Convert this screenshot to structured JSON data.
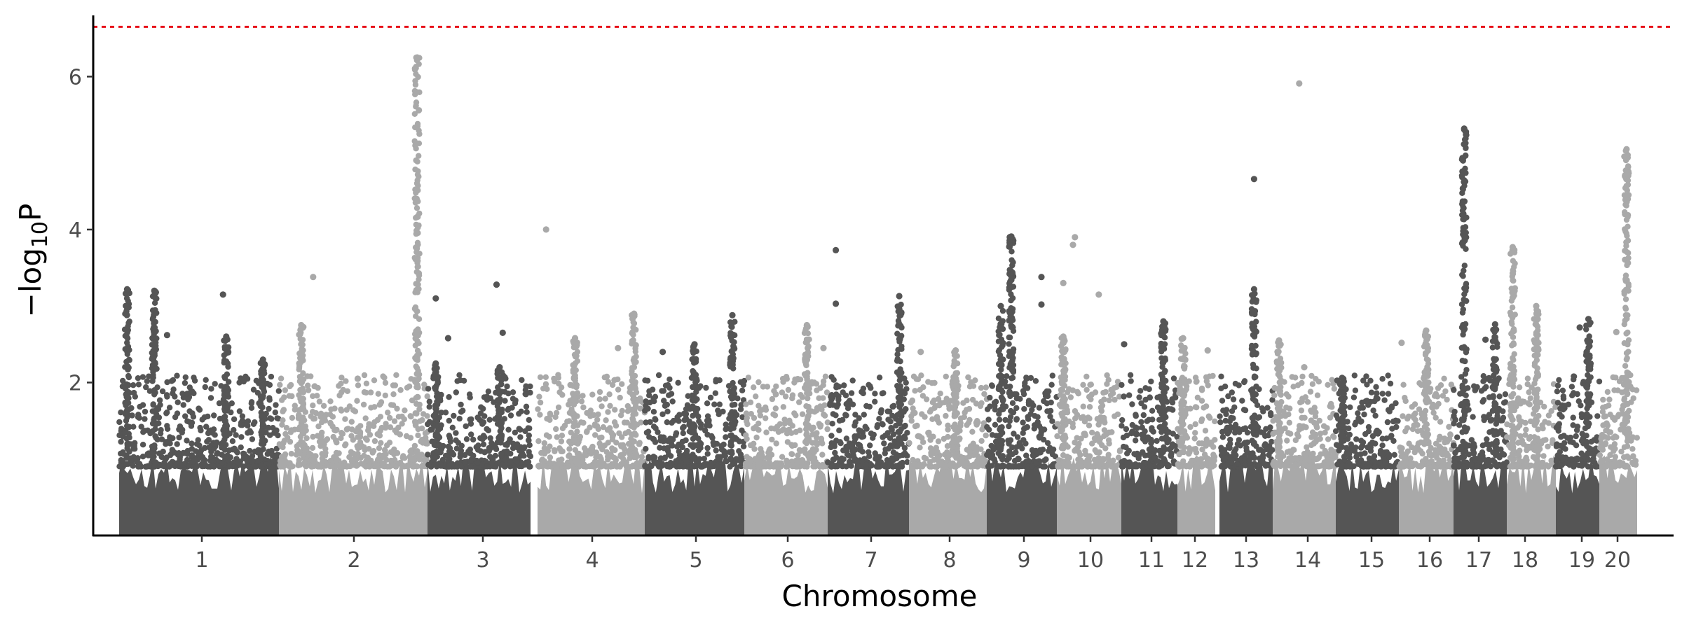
{
  "chart_data": {
    "type": "scatter",
    "subtype": "manhattan",
    "title": "",
    "xlabel": "Chromosome",
    "ylabel_main": "−log",
    "ylabel_sub": "10",
    "ylabel_tail": "P",
    "ylim": [
      0,
      6.8
    ],
    "yticks": [
      2,
      4,
      6
    ],
    "grid": false,
    "legend": "none",
    "threshold": {
      "value": 6.65,
      "color": "#e8101a",
      "style": "dashed"
    },
    "colors": {
      "dark": "#555555",
      "light": "#a9a9a9",
      "axis": "#000000"
    },
    "chromosomes": [
      {
        "name": "1",
        "color": "dark",
        "peaks": [
          {
            "at": 0.05,
            "value": 3.22
          },
          {
            "at": 0.22,
            "value": 3.2
          },
          {
            "at": 0.67,
            "value": 2.6
          },
          {
            "at": 0.9,
            "value": 2.3
          }
        ],
        "outliers": [
          {
            "at": 0.3,
            "value": 2.62
          },
          {
            "at": 0.65,
            "value": 3.15
          }
        ]
      },
      {
        "name": "2",
        "color": "light",
        "peaks": [
          {
            "at": 0.15,
            "value": 2.75
          },
          {
            "at": 0.93,
            "value": 6.25
          }
        ],
        "outliers": [
          {
            "at": 0.23,
            "value": 3.38
          },
          {
            "at": 0.53,
            "value": 2.05
          }
        ]
      },
      {
        "name": "3",
        "color": "dark",
        "peaks": [
          {
            "at": 0.08,
            "value": 2.25
          },
          {
            "at": 0.7,
            "value": 2.2
          }
        ],
        "outliers": [
          {
            "at": 0.08,
            "value": 3.1
          },
          {
            "at": 0.2,
            "value": 2.58
          },
          {
            "at": 0.67,
            "value": 3.28
          },
          {
            "at": 0.73,
            "value": 2.65
          }
        ]
      },
      {
        "name": "4",
        "color": "light",
        "peaks": [
          {
            "at": 0.35,
            "value": 2.58
          },
          {
            "at": 0.9,
            "value": 2.9
          }
        ],
        "outliers": [
          {
            "at": 0.08,
            "value": 4.0
          },
          {
            "at": 0.75,
            "value": 2.45
          }
        ]
      },
      {
        "name": "5",
        "color": "dark",
        "peaks": [
          {
            "at": 0.5,
            "value": 2.5
          },
          {
            "at": 0.88,
            "value": 2.88
          }
        ],
        "outliers": [
          {
            "at": 0.18,
            "value": 2.4
          }
        ]
      },
      {
        "name": "6",
        "color": "light",
        "peaks": [
          {
            "at": 0.75,
            "value": 2.75
          }
        ],
        "outliers": [
          {
            "at": 0.95,
            "value": 2.45
          }
        ]
      },
      {
        "name": "7",
        "color": "dark",
        "peaks": [
          {
            "at": 0.88,
            "value": 3.13
          }
        ],
        "outliers": [
          {
            "at": 0.1,
            "value": 3.73
          },
          {
            "at": 0.1,
            "value": 3.03
          }
        ]
      },
      {
        "name": "8",
        "color": "light",
        "peaks": [
          {
            "at": 0.6,
            "value": 2.42
          }
        ],
        "outliers": [
          {
            "at": 0.15,
            "value": 2.4
          }
        ]
      },
      {
        "name": "9",
        "color": "dark",
        "peaks": [
          {
            "at": 0.35,
            "value": 3.91
          },
          {
            "at": 0.2,
            "value": 3.0
          }
        ],
        "outliers": [
          {
            "at": 0.78,
            "value": 3.38
          },
          {
            "at": 0.78,
            "value": 3.02
          }
        ]
      },
      {
        "name": "10",
        "color": "light",
        "peaks": [
          {
            "at": 0.1,
            "value": 2.6
          }
        ],
        "outliers": [
          {
            "at": 0.28,
            "value": 3.9
          },
          {
            "at": 0.25,
            "value": 3.8
          },
          {
            "at": 0.1,
            "value": 3.3
          },
          {
            "at": 0.65,
            "value": 3.15
          }
        ]
      },
      {
        "name": "11",
        "color": "dark",
        "peaks": [
          {
            "at": 0.75,
            "value": 2.8
          }
        ],
        "outliers": [
          {
            "at": 0.05,
            "value": 2.5
          }
        ]
      },
      {
        "name": "12",
        "color": "light",
        "peaks": [
          {
            "at": 0.15,
            "value": 2.58
          }
        ],
        "outliers": [
          {
            "at": 0.8,
            "value": 2.42
          }
        ]
      },
      {
        "name": "13",
        "color": "dark",
        "peaks": [
          {
            "at": 0.65,
            "value": 3.22
          }
        ],
        "outliers": [
          {
            "at": 0.65,
            "value": 4.66
          }
        ]
      },
      {
        "name": "14",
        "color": "light",
        "peaks": [
          {
            "at": 0.1,
            "value": 2.55
          }
        ],
        "outliers": [
          {
            "at": 0.42,
            "value": 5.91
          },
          {
            "at": 0.5,
            "value": 2.2
          }
        ]
      },
      {
        "name": "15",
        "color": "dark",
        "peaks": [
          {
            "at": 0.1,
            "value": 2.06
          }
        ],
        "outliers": [
          {
            "at": 0.95,
            "value": 1.5
          }
        ]
      },
      {
        "name": "16",
        "color": "light",
        "peaks": [
          {
            "at": 0.5,
            "value": 2.68
          }
        ],
        "outliers": [
          {
            "at": 0.05,
            "value": 2.52
          }
        ]
      },
      {
        "name": "17",
        "color": "dark",
        "peaks": [
          {
            "at": 0.2,
            "value": 5.32
          },
          {
            "at": 0.78,
            "value": 2.76
          }
        ],
        "outliers": [
          {
            "at": 0.6,
            "value": 2.56
          }
        ]
      },
      {
        "name": "18",
        "color": "light",
        "peaks": [
          {
            "at": 0.12,
            "value": 3.77
          },
          {
            "at": 0.6,
            "value": 3.0
          }
        ],
        "outliers": [
          {
            "at": 0.12,
            "value": 3.11
          }
        ]
      },
      {
        "name": "19",
        "color": "dark",
        "peaks": [
          {
            "at": 0.75,
            "value": 2.83
          }
        ],
        "outliers": [
          {
            "at": 0.55,
            "value": 2.72
          },
          {
            "at": 0.75,
            "value": 2.27
          }
        ]
      },
      {
        "name": "20",
        "color": "light",
        "peaks": [
          {
            "at": 0.72,
            "value": 5.05
          }
        ],
        "outliers": [
          {
            "at": 0.45,
            "value": 2.66
          }
        ]
      }
    ]
  }
}
